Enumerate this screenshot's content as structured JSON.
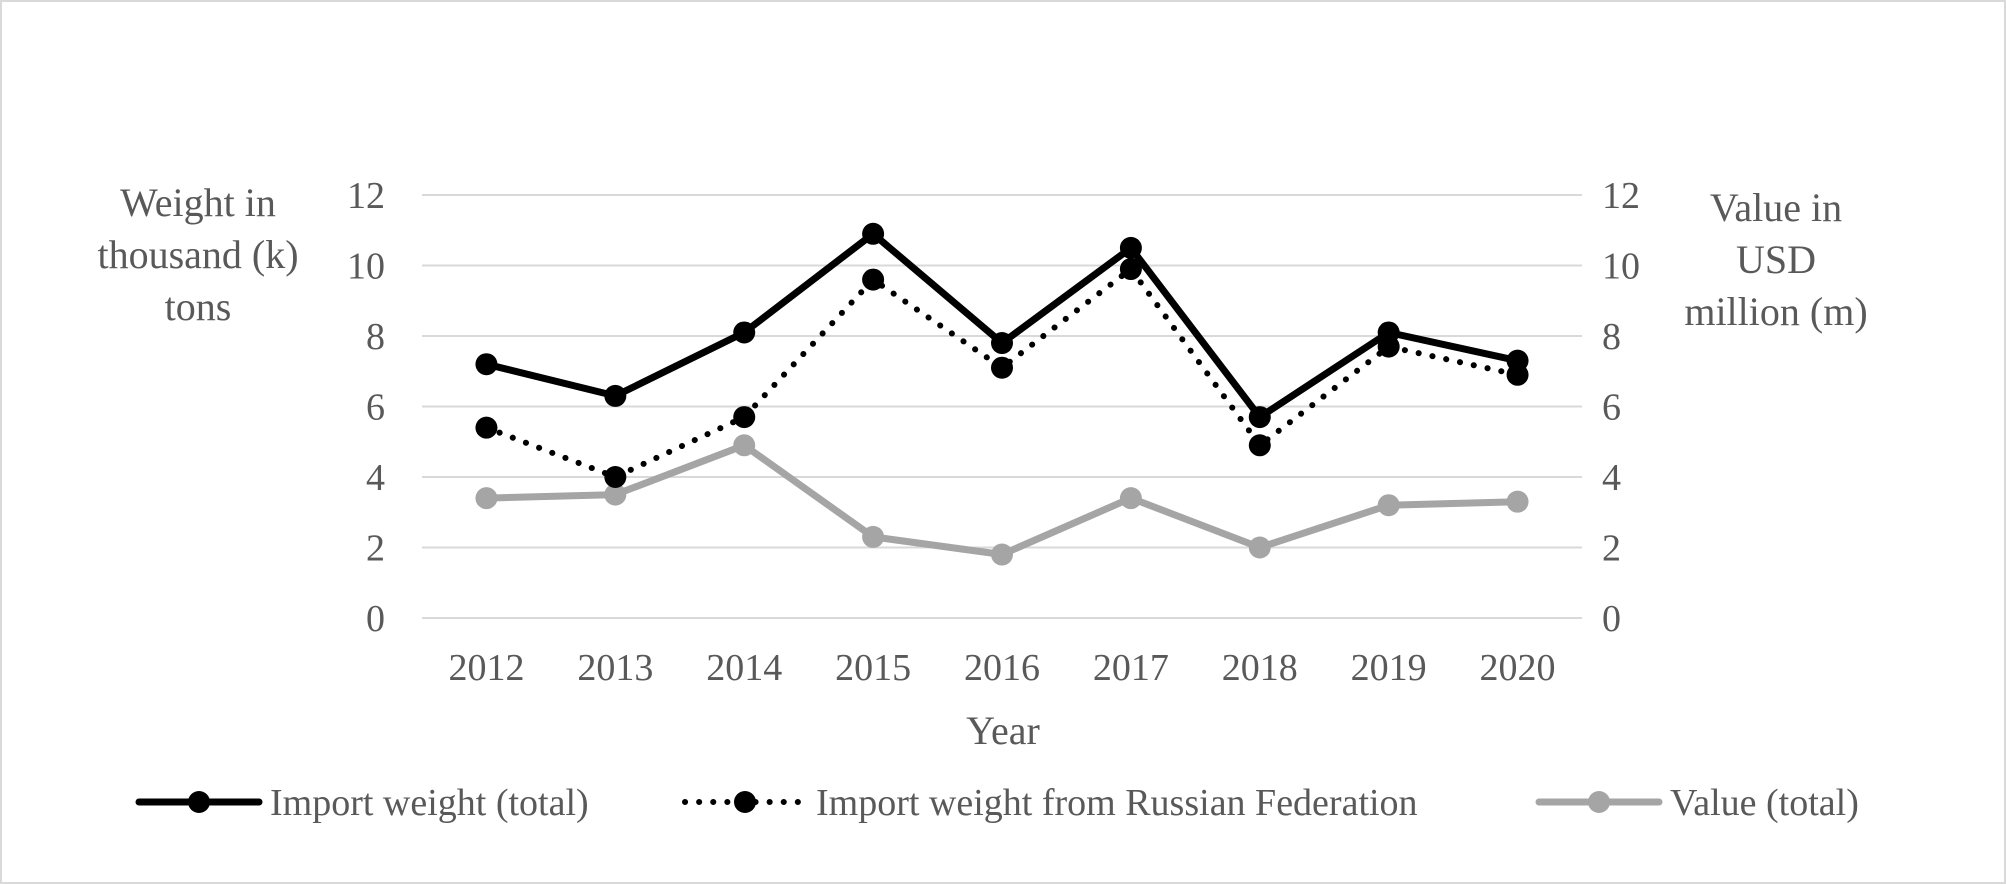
{
  "chart_data": {
    "type": "line",
    "title": "",
    "categories": [
      "2012",
      "2013",
      "2014",
      "2015",
      "2016",
      "2017",
      "2018",
      "2019",
      "2020"
    ],
    "xlabel": "Year",
    "ylabel_left": [
      "Weight in",
      "thousand (k)",
      "tons"
    ],
    "ylabel_right": [
      "Value in",
      "USD",
      "million (m)"
    ],
    "ylim": [
      0,
      12
    ],
    "yticks": [
      "0",
      "2",
      "4",
      "6",
      "8",
      "10",
      "12"
    ],
    "y2lim": [
      0,
      12
    ],
    "y2ticks": [
      "0",
      "2",
      "4",
      "6",
      "8",
      "10",
      "12"
    ],
    "grid": true,
    "legend_position": "bottom",
    "series": [
      {
        "name": "Import weight (total)",
        "axis": "left",
        "values": [
          7.2,
          6.3,
          8.1,
          10.9,
          7.8,
          10.5,
          5.7,
          8.1,
          7.3
        ],
        "color": "#000000",
        "line_style": "solid",
        "marker": "circle"
      },
      {
        "name": "Import weight from Russian Federation",
        "axis": "left",
        "values": [
          5.4,
          4.0,
          5.7,
          9.6,
          7.1,
          9.9,
          4.9,
          7.7,
          6.9
        ],
        "color": "#000000",
        "line_style": "dotted",
        "marker": "circle"
      },
      {
        "name": "Value (total)",
        "axis": "right",
        "values": [
          3.4,
          3.5,
          4.9,
          2.3,
          1.8,
          3.4,
          2.0,
          3.2,
          3.3
        ],
        "color": "#a5a5a5",
        "line_style": "solid",
        "marker": "circle"
      }
    ]
  }
}
